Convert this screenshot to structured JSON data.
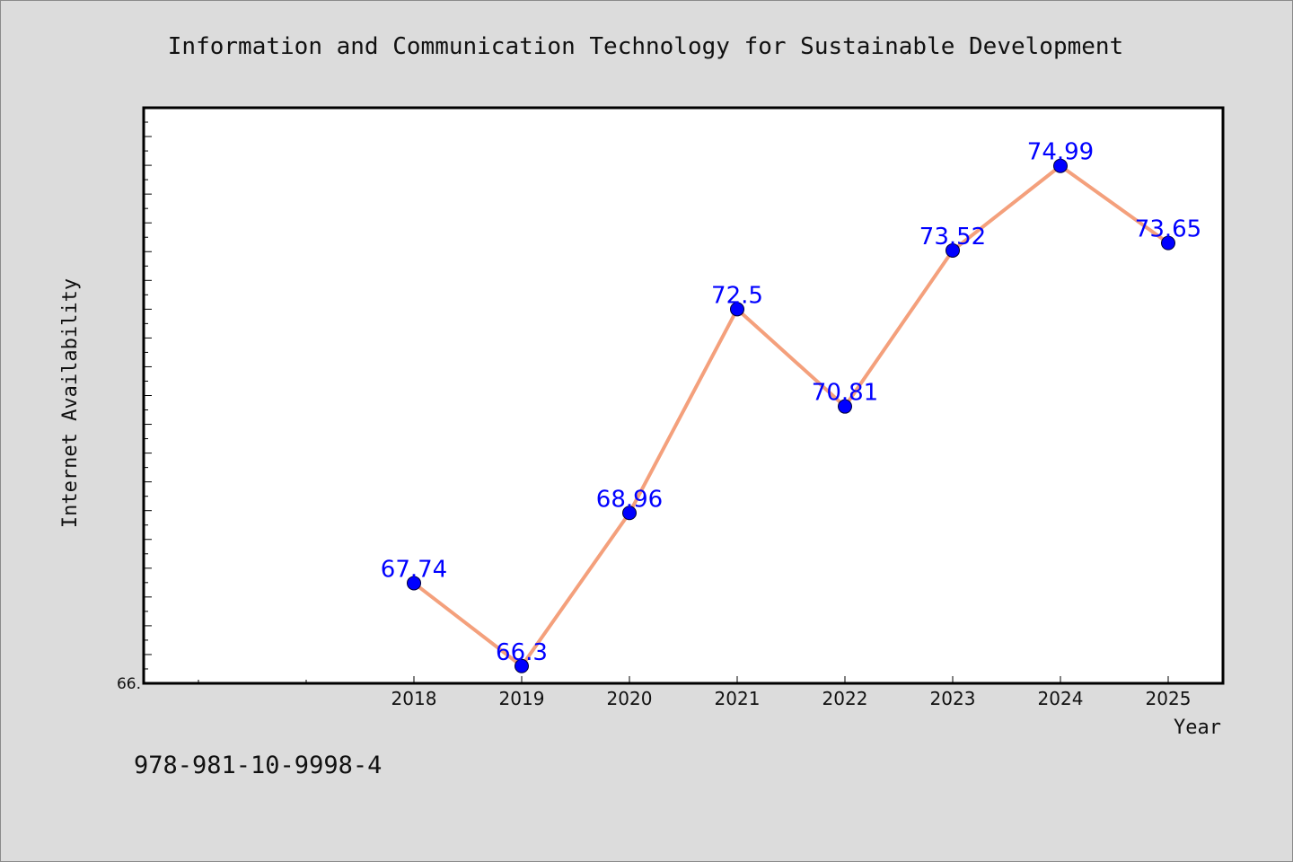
{
  "chart_data": {
    "type": "line",
    "title": "Information and Communication Technology for Sustainable Development",
    "xlabel": "Year",
    "ylabel": "Internet Availability",
    "x": [
      "2018",
      "2019",
      "2020",
      "2021",
      "2022",
      "2023",
      "2024",
      "2025"
    ],
    "series": [
      {
        "values": [
          67.74,
          66.3,
          68.96,
          72.5,
          70.81,
          73.52,
          74.99,
          73.65
        ]
      }
    ],
    "y_tick_labels": [
      "66."
    ],
    "ylim": [
      66.0,
      76.0
    ],
    "grid": false,
    "legend": "none",
    "line_color": "#f4a07c",
    "marker_color": "#0000ff",
    "label_color": "#0000ff"
  },
  "footer": {
    "isbn": "978-981-10-9998-4"
  }
}
